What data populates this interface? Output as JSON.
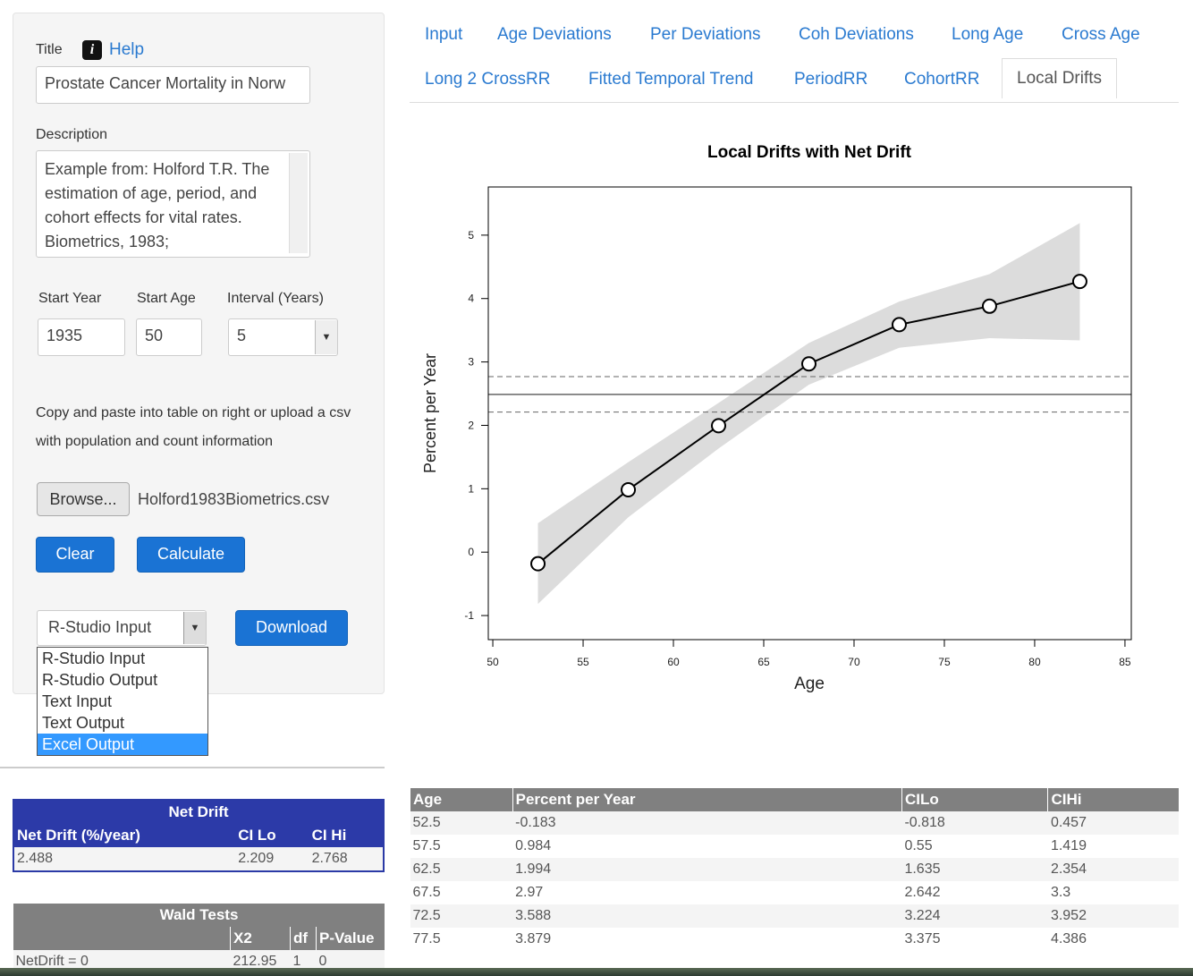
{
  "sidebar": {
    "title_label": "Title",
    "help": "Help",
    "title_value": "Prostate Cancer Mortality in Norw",
    "description_label": "Description",
    "description": "Example from: Holford T.R. The estimation of age, period, and cohort effects for vital rates. Biometrics, 1983;",
    "start_year_label": "Start Year",
    "start_year": "1935",
    "start_age_label": "Start Age",
    "start_age": "50",
    "interval_label": "Interval (Years)",
    "interval": "5",
    "instructions": "Copy and paste into table on right or upload a csv with population and count information",
    "browse": "Browse...",
    "file_name": "Holford1983Biometrics.csv",
    "clear": "Clear",
    "calculate": "Calculate",
    "output_format": "R-Studio Input",
    "download": "Download",
    "output_options": [
      "R-Studio Input",
      "R-Studio Output",
      "Text Input",
      "Text Output",
      "Excel Output"
    ]
  },
  "tabs": [
    [
      "Input",
      "Age Deviations",
      "Per Deviations",
      "Coh Deviations",
      "Long Age",
      "Cross Age"
    ],
    [
      "Long 2 CrossRR",
      "Fitted Temporal Trend",
      "PeriodRR",
      "CohortRR",
      "Local Drifts"
    ]
  ],
  "chart_data": {
    "type": "line",
    "title": "Local Drifts with Net Drift",
    "x_label": "Age",
    "y_label": "Percent per Year",
    "x": [
      52.5,
      57.5,
      62.5,
      67.5,
      72.5,
      77.5,
      82.5
    ],
    "values": [
      -0.183,
      0.984,
      1.994,
      2.97,
      3.588,
      3.879,
      4.27
    ],
    "ci_lower": [
      -0.818,
      0.55,
      1.635,
      2.642,
      3.224,
      3.375,
      3.34
    ],
    "ci_upper": [
      0.457,
      1.419,
      2.354,
      3.3,
      3.952,
      4.386,
      5.19
    ],
    "net_drift": 2.488,
    "net_drift_ci": [
      2.209,
      2.768
    ],
    "color": "#000000",
    "band_color": "#dcdcdc",
    "reference_color": "#666666",
    "xlim": [
      49.75,
      85.35
    ],
    "ylim": [
      -1.38,
      5.76
    ],
    "xticks": [
      50,
      55,
      60,
      65,
      70,
      75,
      80,
      85
    ],
    "yticks": [
      -1,
      0,
      1,
      2,
      3,
      4,
      5
    ]
  },
  "net_drift_table": {
    "title": "Net Drift",
    "columns": [
      "Net Drift (%/year)",
      "CI Lo",
      "CI Hi"
    ],
    "rows": [
      [
        "2.488",
        "2.209",
        "2.768"
      ]
    ]
  },
  "wald_table": {
    "title": "Wald Tests",
    "columns": [
      "X2",
      "df",
      "P-Value"
    ],
    "rows": [
      [
        "NetDrift = 0",
        "212.95",
        "1",
        "0"
      ]
    ]
  },
  "drifts_table": {
    "columns": [
      "Age",
      "Percent per Year",
      "CILo",
      "CIHi"
    ],
    "rows": [
      [
        "52.5",
        "-0.183",
        "-0.818",
        "0.457"
      ],
      [
        "57.5",
        "0.984",
        "0.55",
        "1.419"
      ],
      [
        "62.5",
        "1.994",
        "1.635",
        "2.354"
      ],
      [
        "67.5",
        "2.97",
        "2.642",
        "3.3"
      ],
      [
        "72.5",
        "3.588",
        "3.224",
        "3.952"
      ],
      [
        "77.5",
        "3.879",
        "3.375",
        "4.386"
      ]
    ]
  }
}
